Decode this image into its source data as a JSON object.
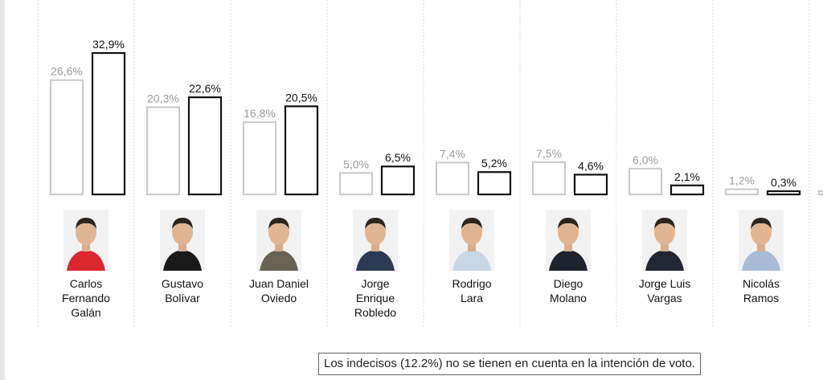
{
  "chart_data": {
    "type": "bar",
    "categories": [
      "Carlos Fernando Galán",
      "Gustavo Bolívar",
      "Juan Daniel Oviedo",
      "Jorge Enrique Robledo",
      "Rodrigo Lara",
      "Diego Molano",
      "Jorge Luis Vargas",
      "Nicolás Ramos"
    ],
    "series": [
      {
        "values": [
          26.6,
          20.3,
          16.8,
          5.0,
          7.4,
          7.5,
          6.0,
          1.2
        ],
        "labels": [
          "26,6%",
          "20,3%",
          "16,8%",
          "5,0%",
          "7,4%",
          "7,5%",
          "6,0%",
          "1,2%"
        ],
        "color": "#c8c8c8"
      },
      {
        "values": [
          32.9,
          22.6,
          20.5,
          6.5,
          5.2,
          4.6,
          2.1,
          0.3
        ],
        "labels": [
          "32,9%",
          "22,6%",
          "20,5%",
          "6,5%",
          "5,2%",
          "4,6%",
          "2,1%",
          "0,3%"
        ],
        "color": "#111111"
      }
    ],
    "ylim": [
      0,
      35
    ],
    "grid": false,
    "legend": "none"
  },
  "candidates": [
    {
      "name": "Carlos Fernando Galán",
      "icon": "portrait-icon",
      "shirt": "#d9272e"
    },
    {
      "name": "Gustavo Bolívar",
      "icon": "portrait-icon",
      "shirt": "#1a1a1a"
    },
    {
      "name": "Juan Daniel Oviedo",
      "icon": "portrait-icon",
      "shirt": "#6b6256"
    },
    {
      "name": "Jorge Enrique Robledo",
      "icon": "portrait-icon",
      "shirt": "#2d3a55"
    },
    {
      "name": "Rodrigo Lara",
      "icon": "portrait-icon",
      "shirt": "#c9d6e6"
    },
    {
      "name": "Diego Molano",
      "icon": "portrait-icon",
      "shirt": "#1e2330"
    },
    {
      "name": "Jorge Luis Vargas",
      "icon": "portrait-icon",
      "shirt": "#222833"
    },
    {
      "name": "Nicolás Ramos",
      "icon": "portrait-icon",
      "shirt": "#a8bcd8"
    }
  ],
  "note": "Los indecisos (12.2%) no se tienen en cuenta en la intención de voto."
}
